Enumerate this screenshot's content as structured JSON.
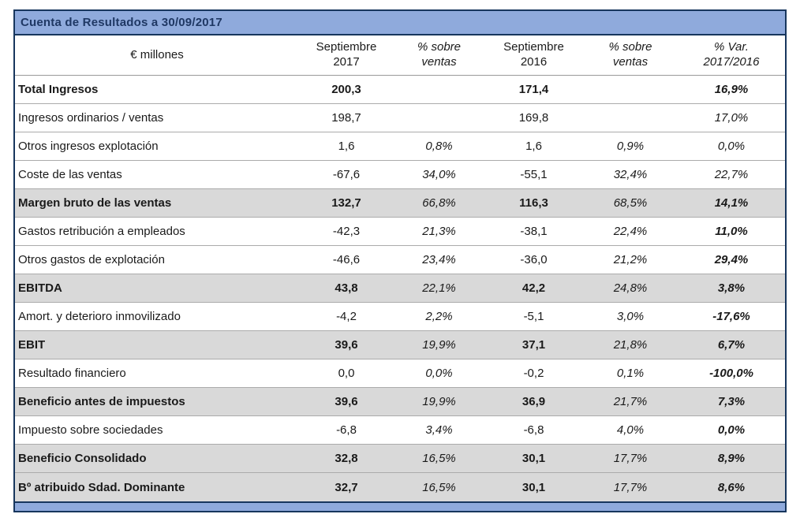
{
  "title": "Cuenta de Resultados a 30/09/2017",
  "table": {
    "unit_label": "€ millones",
    "columns": [
      "Septiembre\n2017",
      "% sobre\nventas",
      "Septiembre\n2016",
      "% sobre\nventas",
      "% Var.\n2017/2016"
    ],
    "colors": {
      "bar_blue": "#8FAADC",
      "border_navy": "#17365D",
      "shaded_row": "#D9D9D9"
    },
    "rows": [
      {
        "label": "Total Ingresos",
        "bold": true,
        "shaded": false,
        "values": [
          "200,3",
          "",
          "171,4",
          "",
          "16,9%"
        ],
        "var_bold": true
      },
      {
        "label": "Ingresos ordinarios / ventas",
        "bold": false,
        "shaded": false,
        "values": [
          "198,7",
          "",
          "169,8",
          "",
          "17,0%"
        ],
        "var_bold": false
      },
      {
        "label": "Otros ingresos explotación",
        "bold": false,
        "shaded": false,
        "values": [
          "1,6",
          "0,8%",
          "1,6",
          "0,9%",
          "0,0%"
        ],
        "var_bold": false
      },
      {
        "label": "Coste de las ventas",
        "bold": false,
        "shaded": false,
        "values": [
          "-67,6",
          "34,0%",
          "-55,1",
          "32,4%",
          "22,7%"
        ],
        "var_bold": false
      },
      {
        "label": "Margen bruto de las ventas",
        "bold": true,
        "shaded": true,
        "values": [
          "132,7",
          "66,8%",
          "116,3",
          "68,5%",
          "14,1%"
        ],
        "var_bold": true
      },
      {
        "label": "Gastos retribución a empleados",
        "bold": false,
        "shaded": false,
        "values": [
          "-42,3",
          "21,3%",
          "-38,1",
          "22,4%",
          "11,0%"
        ],
        "var_bold": true
      },
      {
        "label": "Otros gastos de explotación",
        "bold": false,
        "shaded": false,
        "values": [
          "-46,6",
          "23,4%",
          "-36,0",
          "21,2%",
          "29,4%"
        ],
        "var_bold": true
      },
      {
        "label": "EBITDA",
        "bold": true,
        "shaded": true,
        "values": [
          "43,8",
          "22,1%",
          "42,2",
          "24,8%",
          "3,8%"
        ],
        "var_bold": true
      },
      {
        "label": "Amort. y deterioro inmovilizado",
        "bold": false,
        "shaded": false,
        "values": [
          "-4,2",
          "2,2%",
          "-5,1",
          "3,0%",
          "-17,6%"
        ],
        "var_bold": true
      },
      {
        "label": "EBIT",
        "bold": true,
        "shaded": true,
        "values": [
          "39,6",
          "19,9%",
          "37,1",
          "21,8%",
          "6,7%"
        ],
        "var_bold": true
      },
      {
        "label": "Resultado financiero",
        "bold": false,
        "shaded": false,
        "values": [
          "0,0",
          "0,0%",
          "-0,2",
          "0,1%",
          "-100,0%"
        ],
        "var_bold": true
      },
      {
        "label": "Beneficio antes de impuestos",
        "bold": true,
        "shaded": true,
        "values": [
          "39,6",
          "19,9%",
          "36,9",
          "21,7%",
          "7,3%"
        ],
        "var_bold": true
      },
      {
        "label": "Impuesto sobre sociedades",
        "bold": false,
        "shaded": false,
        "values": [
          "-6,8",
          "3,4%",
          "-6,8",
          "4,0%",
          "0,0%"
        ],
        "var_bold": true
      },
      {
        "label": "Beneficio Consolidado",
        "bold": true,
        "shaded": true,
        "values": [
          "32,8",
          "16,5%",
          "30,1",
          "17,7%",
          "8,9%"
        ],
        "var_bold": true
      },
      {
        "label": "Bº atribuido Sdad. Dominante",
        "bold": true,
        "shaded": true,
        "values": [
          "32,7",
          "16,5%",
          "30,1",
          "17,7%",
          "8,6%"
        ],
        "var_bold": true
      }
    ]
  }
}
